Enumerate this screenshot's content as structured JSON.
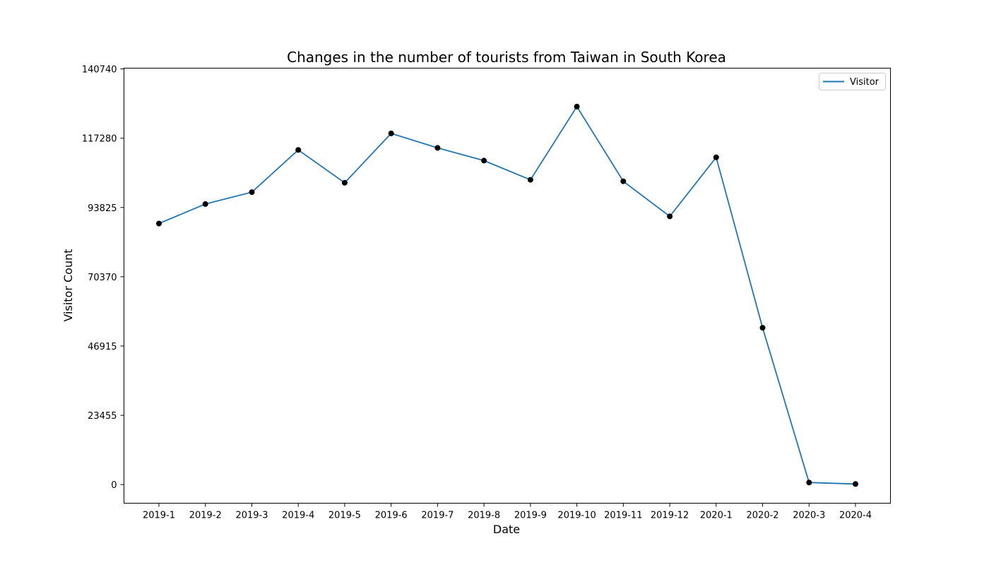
{
  "chart_data": {
    "type": "line",
    "title": "Changes in the number of tourists from Taiwan in South Korea",
    "xlabel": "Date",
    "ylabel": "Visitor Count",
    "categories": [
      "2019-1",
      "2019-2",
      "2019-3",
      "2019-4",
      "2019-5",
      "2019-6",
      "2019-7",
      "2019-8",
      "2019-9",
      "2019-10",
      "2019-11",
      "2019-12",
      "2020-1",
      "2020-2",
      "2020-3",
      "2020-4"
    ],
    "series": [
      {
        "name": "Visitor",
        "color": "#1f77b4",
        "values": [
          88400,
          95000,
          99000,
          113300,
          102200,
          118900,
          114000,
          109700,
          103200,
          128000,
          102700,
          90800,
          110800,
          53100,
          700,
          200
        ]
      }
    ],
    "yticks": [
      0,
      23455,
      46915,
      70370,
      93825,
      117280,
      140740
    ],
    "ylim": [
      -6300,
      141000
    ],
    "marker_color": "#000000",
    "grid": false,
    "legend": "top-right"
  }
}
